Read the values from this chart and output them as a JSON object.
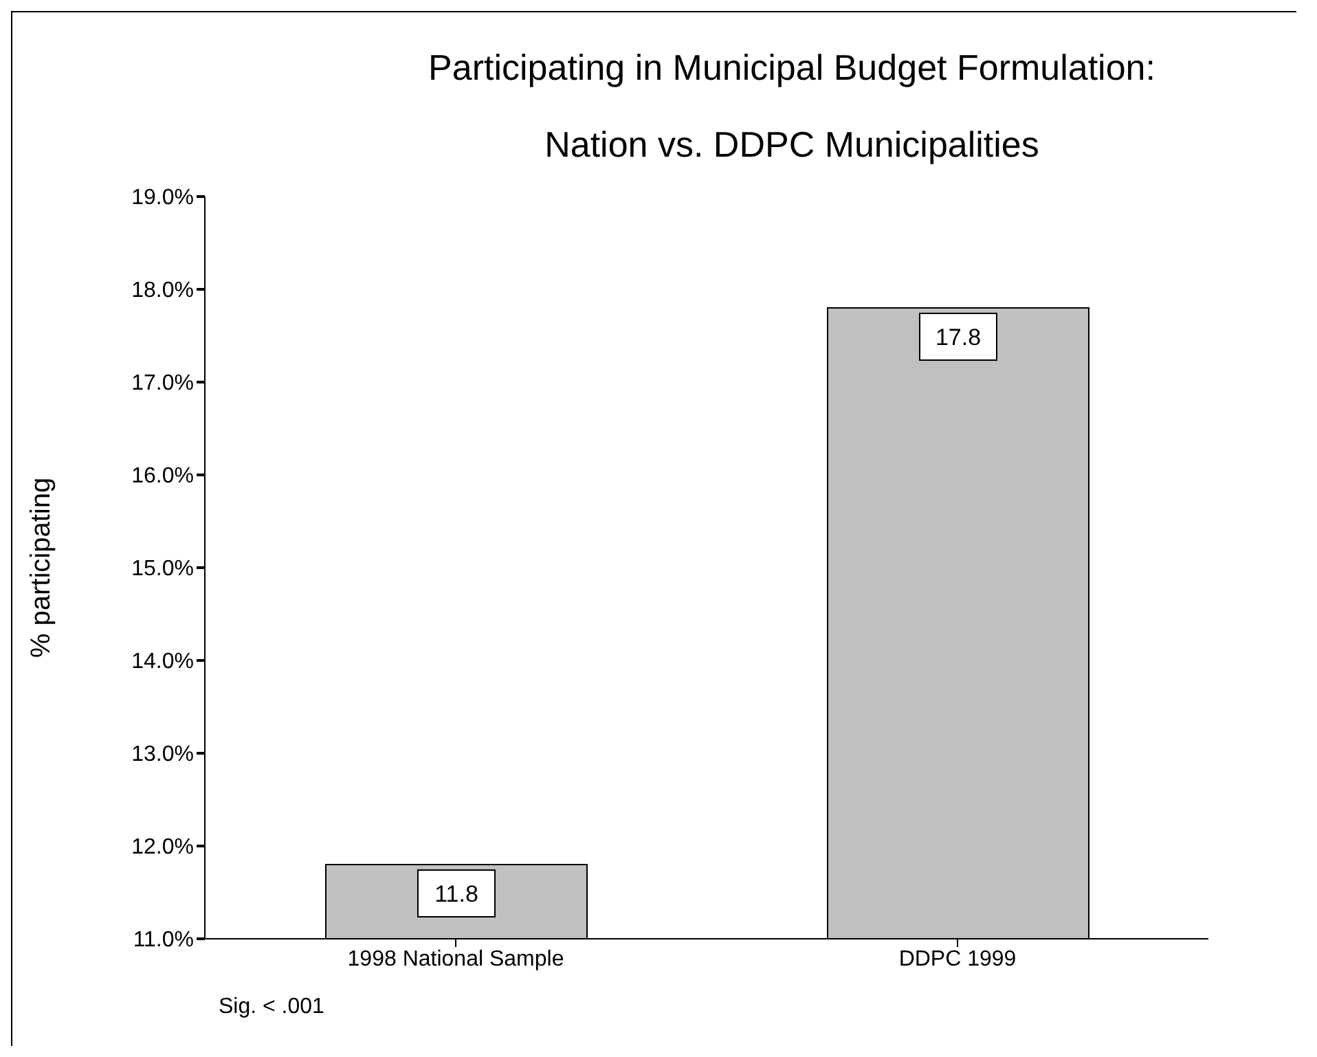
{
  "chart_data": {
    "type": "bar",
    "title": "Participating in Municipal Budget Formulation:",
    "subtitle": "Nation vs. DDPC Municipalities",
    "ylabel": "% participating",
    "categories": [
      "1998 National Sample",
      "DDPC 1999"
    ],
    "values": [
      11.8,
      17.8
    ],
    "color": "#c0c0c0",
    "ylim": [
      11,
      19
    ],
    "yticks": [
      {
        "value": 11,
        "label": "11.0%"
      },
      {
        "value": 12,
        "label": "12.0%"
      },
      {
        "value": 13,
        "label": "13.0%"
      },
      {
        "value": 14,
        "label": "14.0%"
      },
      {
        "value": 15,
        "label": "15.0%"
      },
      {
        "value": 16,
        "label": "16.0%"
      },
      {
        "value": 17,
        "label": "17.0%"
      },
      {
        "value": 18,
        "label": "18.0%"
      },
      {
        "value": 19,
        "label": "19.0%"
      }
    ],
    "data_labels": true,
    "grid": false,
    "annotations": [
      "Sig. < .001"
    ]
  }
}
